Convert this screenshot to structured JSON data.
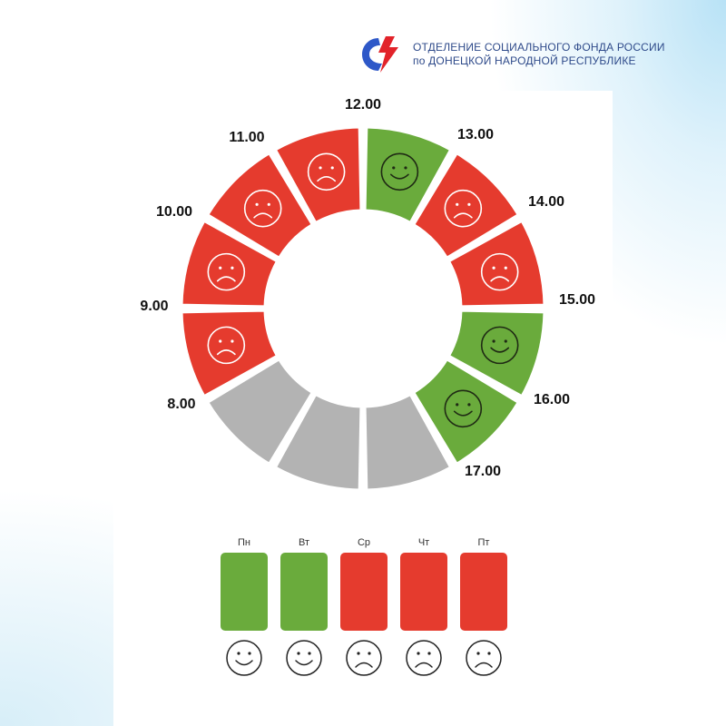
{
  "header": {
    "org_line1": "ОТДЕЛЕНИЕ СОЦИАЛЬНОГО ФОНДА РОССИИ",
    "org_line2": "по ДОНЕЦКОЙ НАРОДНОЙ РЕСПУБЛИКЕ"
  },
  "colors": {
    "busy": "#e53b2e",
    "free": "#6aab3c",
    "closed": "#b3b3b3",
    "logo_blue": "#2e58c8",
    "logo_red": "#e2232a"
  },
  "hours": [
    {
      "label": "8.00",
      "status": "closed",
      "face": "none"
    },
    {
      "label": "9.00",
      "status": "busy",
      "face": "sad"
    },
    {
      "label": "10.00",
      "status": "busy",
      "face": "sad"
    },
    {
      "label": "11.00",
      "status": "busy",
      "face": "sad"
    },
    {
      "label": "12.00",
      "status": "busy",
      "face": "sad"
    },
    {
      "label": "13.00",
      "status": "free",
      "face": "happy"
    },
    {
      "label": "14.00",
      "status": "busy",
      "face": "sad"
    },
    {
      "label": "15.00",
      "status": "busy",
      "face": "sad"
    },
    {
      "label": "16.00",
      "status": "free",
      "face": "happy"
    },
    {
      "label": "17.00",
      "status": "free",
      "face": "happy"
    },
    {
      "label": "",
      "status": "closed",
      "face": "none"
    },
    {
      "label": "",
      "status": "closed",
      "face": "none"
    }
  ],
  "days": [
    {
      "label": "Пн",
      "status": "free",
      "face": "happy"
    },
    {
      "label": "Вт",
      "status": "free",
      "face": "happy"
    },
    {
      "label": "Ср",
      "status": "busy",
      "face": "sad"
    },
    {
      "label": "Чт",
      "status": "busy",
      "face": "sad"
    },
    {
      "label": "Пт",
      "status": "busy",
      "face": "sad"
    }
  ]
}
